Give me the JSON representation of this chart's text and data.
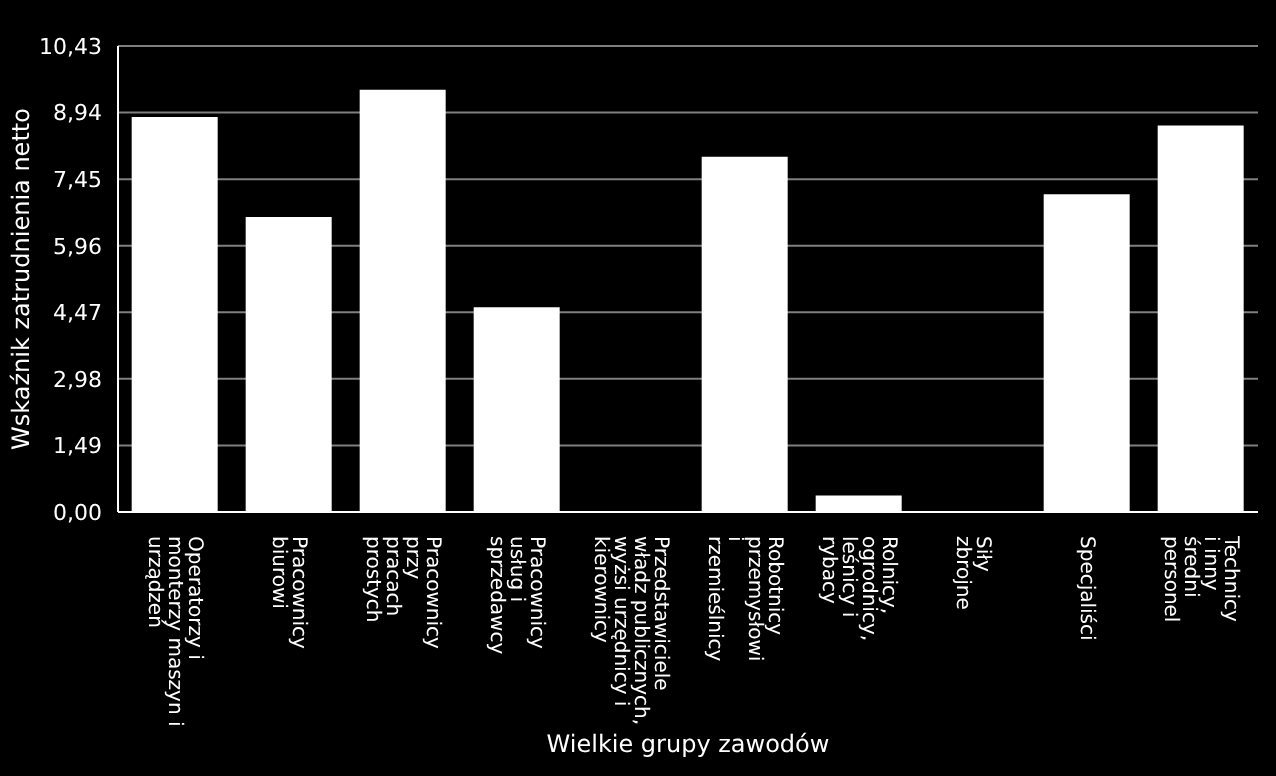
{
  "chart_data": {
    "type": "bar",
    "xlabel": "Wielkie grupy zawodów",
    "ylabel": "Wskaźnik zatrudnienia netto",
    "categories": [
      "Operatorzy i\nmonterzy maszyn i\nurządzeń",
      "Pracownicy\nbiurowi",
      "Pracownicy\nprzy\npracach\nprostych",
      "Pracownicy\nusług i\nsprzedawcy",
      "Przedstawiciele\nwładz publicznych,\nwyżsi urzędnicy i\nkierownicy",
      "Robotnicy\nprzemysłowi\ni\nrzemieślnicy",
      "Rolnicy,\nogrodnicy,\nleśnicy i\nrybacy",
      "Siły\nzbrojne",
      "Specjaliści",
      "Technicy\ni inny\nśredni\npersonel"
    ],
    "values": [
      8.84,
      6.6,
      9.45,
      4.58,
      0,
      7.95,
      0.37,
      0,
      7.11,
      8.65
    ],
    "color": "#ffffff",
    "ylim": [
      0,
      10.43
    ],
    "yticks": [
      {
        "value": 0,
        "label": "0,00"
      },
      {
        "value": 1.49,
        "label": "1,49"
      },
      {
        "value": 2.98,
        "label": "2,98"
      },
      {
        "value": 4.47,
        "label": "4,47"
      },
      {
        "value": 5.96,
        "label": "5,96"
      },
      {
        "value": 7.45,
        "label": "7,45"
      },
      {
        "value": 8.94,
        "label": "8,94"
      },
      {
        "value": 10.43,
        "label": "10,43"
      }
    ],
    "grid": "y"
  }
}
